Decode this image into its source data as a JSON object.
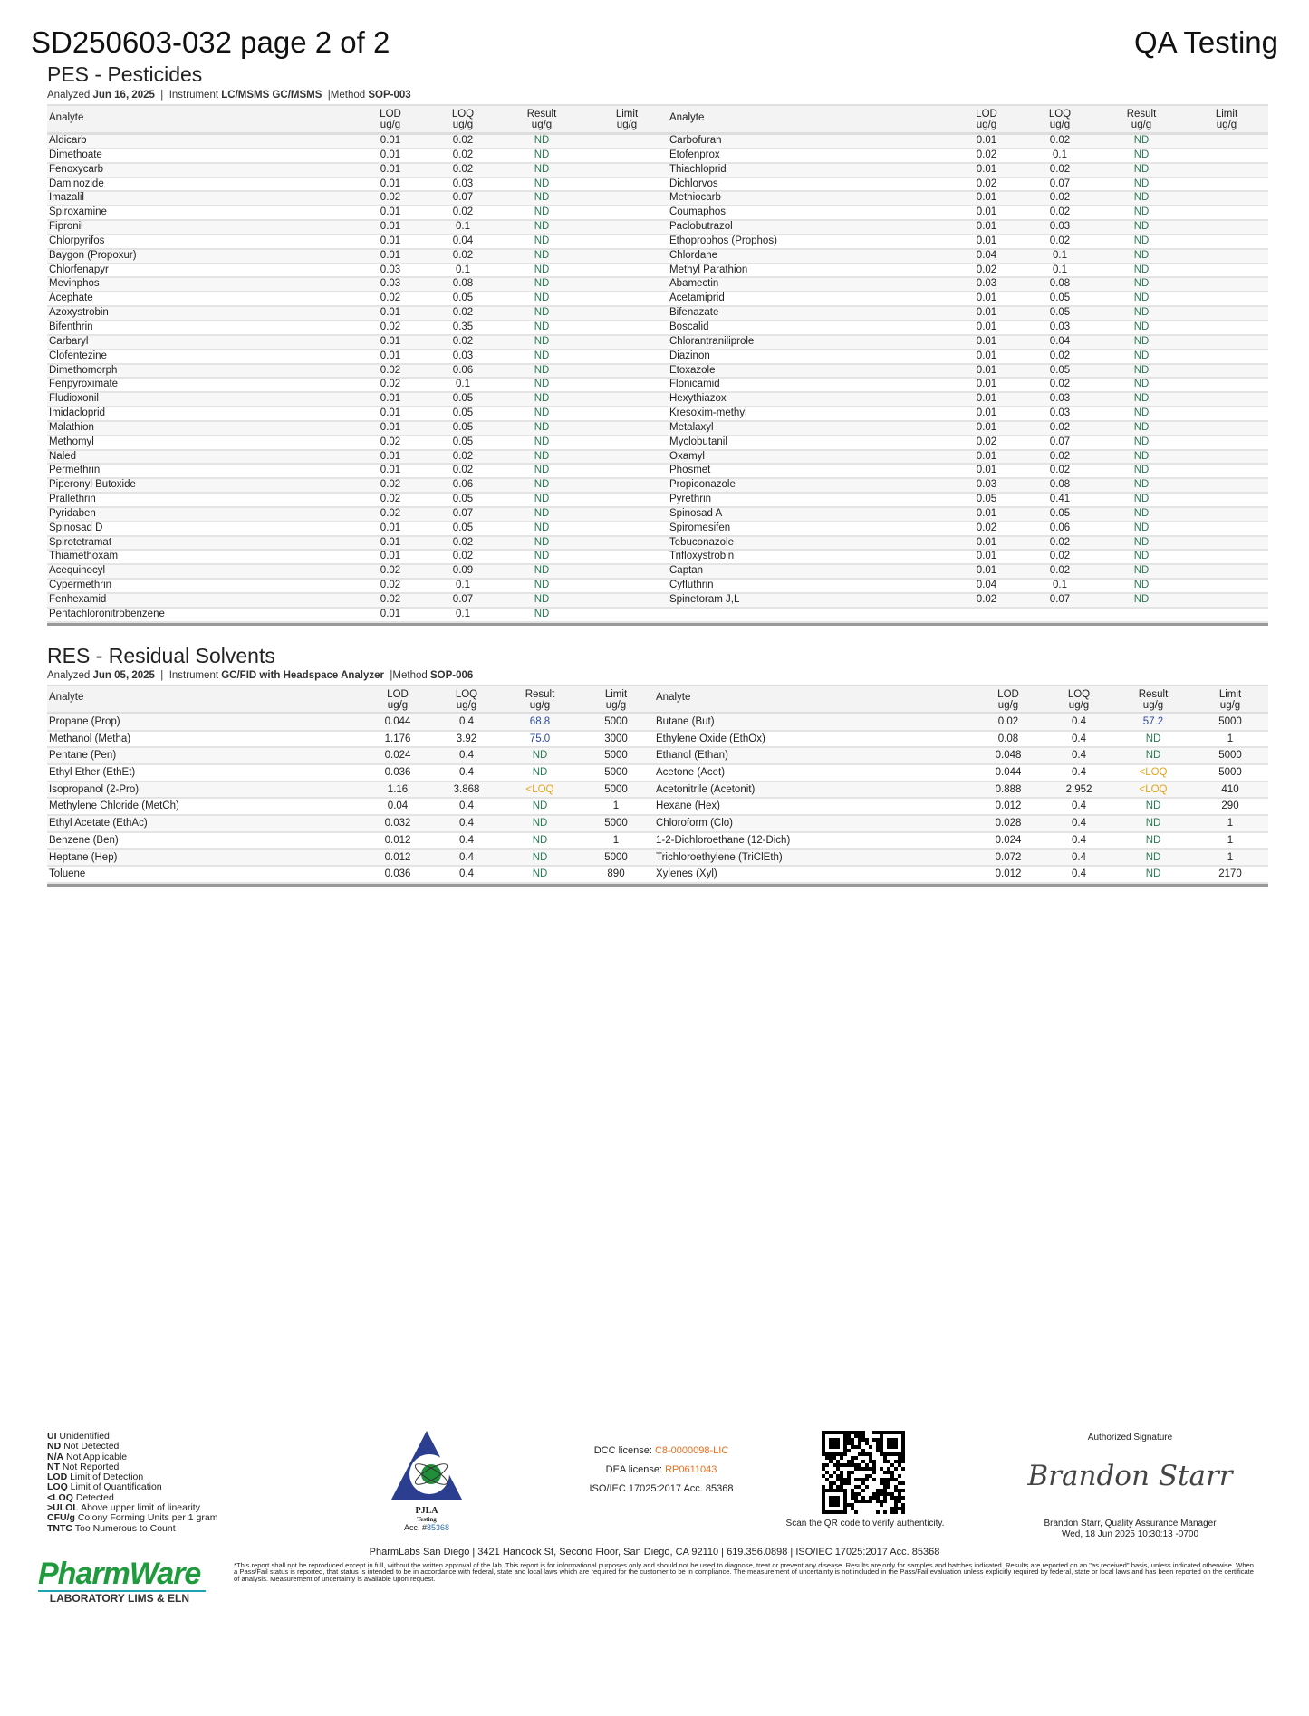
{
  "header": {
    "title": "SD250603-032 page 2 of 2",
    "client": "QA Testing"
  },
  "pes": {
    "heading": "PES - Pesticides",
    "analyzed_label": "Analyzed",
    "analyzed_date": "Jun 16, 2025",
    "instrument_label": "Instrument",
    "instrument": "LC/MSMS GC/MSMS",
    "method_label": "Method",
    "method": "SOP-003",
    "columns": {
      "analyte": "Analyte",
      "lod": [
        "LOD",
        "ug/g"
      ],
      "loq": [
        "LOQ",
        "ug/g"
      ],
      "result": [
        "Result",
        "ug/g"
      ],
      "limit": [
        "Limit",
        "ug/g"
      ]
    },
    "left_rows": [
      [
        "Aldicarb",
        "0.01",
        "0.02",
        "ND",
        ""
      ],
      [
        "Dimethoate",
        "0.01",
        "0.02",
        "ND",
        ""
      ],
      [
        "Fenoxycarb",
        "0.01",
        "0.02",
        "ND",
        ""
      ],
      [
        "Daminozide",
        "0.01",
        "0.03",
        "ND",
        ""
      ],
      [
        "Imazalil",
        "0.02",
        "0.07",
        "ND",
        ""
      ],
      [
        "Spiroxamine",
        "0.01",
        "0.02",
        "ND",
        ""
      ],
      [
        "Fipronil",
        "0.01",
        "0.1",
        "ND",
        ""
      ],
      [
        "Chlorpyrifos",
        "0.01",
        "0.04",
        "ND",
        ""
      ],
      [
        "Baygon (Propoxur)",
        "0.01",
        "0.02",
        "ND",
        ""
      ],
      [
        "Chlorfenapyr",
        "0.03",
        "0.1",
        "ND",
        ""
      ],
      [
        "Mevinphos",
        "0.03",
        "0.08",
        "ND",
        ""
      ],
      [
        "Acephate",
        "0.02",
        "0.05",
        "ND",
        ""
      ],
      [
        "Azoxystrobin",
        "0.01",
        "0.02",
        "ND",
        ""
      ],
      [
        "Bifenthrin",
        "0.02",
        "0.35",
        "ND",
        ""
      ],
      [
        "Carbaryl",
        "0.01",
        "0.02",
        "ND",
        ""
      ],
      [
        "Clofentezine",
        "0.01",
        "0.03",
        "ND",
        ""
      ],
      [
        "Dimethomorph",
        "0.02",
        "0.06",
        "ND",
        ""
      ],
      [
        "Fenpyroximate",
        "0.02",
        "0.1",
        "ND",
        ""
      ],
      [
        "Fludioxonil",
        "0.01",
        "0.05",
        "ND",
        ""
      ],
      [
        "Imidacloprid",
        "0.01",
        "0.05",
        "ND",
        ""
      ],
      [
        "Malathion",
        "0.01",
        "0.05",
        "ND",
        ""
      ],
      [
        "Methomyl",
        "0.02",
        "0.05",
        "ND",
        ""
      ],
      [
        "Naled",
        "0.01",
        "0.02",
        "ND",
        ""
      ],
      [
        "Permethrin",
        "0.01",
        "0.02",
        "ND",
        ""
      ],
      [
        "Piperonyl Butoxide",
        "0.02",
        "0.06",
        "ND",
        ""
      ],
      [
        "Prallethrin",
        "0.02",
        "0.05",
        "ND",
        ""
      ],
      [
        "Pyridaben",
        "0.02",
        "0.07",
        "ND",
        ""
      ],
      [
        "Spinosad D",
        "0.01",
        "0.05",
        "ND",
        ""
      ],
      [
        "Spirotetramat",
        "0.01",
        "0.02",
        "ND",
        ""
      ],
      [
        "Thiamethoxam",
        "0.01",
        "0.02",
        "ND",
        ""
      ],
      [
        "Acequinocyl",
        "0.02",
        "0.09",
        "ND",
        ""
      ],
      [
        "Cypermethrin",
        "0.02",
        "0.1",
        "ND",
        ""
      ],
      [
        "Fenhexamid",
        "0.02",
        "0.07",
        "ND",
        ""
      ],
      [
        "Pentachloronitrobenzene",
        "0.01",
        "0.1",
        "ND",
        ""
      ]
    ],
    "right_rows": [
      [
        "Carbofuran",
        "0.01",
        "0.02",
        "ND",
        ""
      ],
      [
        "Etofenprox",
        "0.02",
        "0.1",
        "ND",
        ""
      ],
      [
        "Thiachloprid",
        "0.01",
        "0.02",
        "ND",
        ""
      ],
      [
        "Dichlorvos",
        "0.02",
        "0.07",
        "ND",
        ""
      ],
      [
        "Methiocarb",
        "0.01",
        "0.02",
        "ND",
        ""
      ],
      [
        "Coumaphos",
        "0.01",
        "0.02",
        "ND",
        ""
      ],
      [
        "Paclobutrazol",
        "0.01",
        "0.03",
        "ND",
        ""
      ],
      [
        "Ethoprophos (Prophos)",
        "0.01",
        "0.02",
        "ND",
        ""
      ],
      [
        "Chlordane",
        "0.04",
        "0.1",
        "ND",
        ""
      ],
      [
        "Methyl Parathion",
        "0.02",
        "0.1",
        "ND",
        ""
      ],
      [
        "Abamectin",
        "0.03",
        "0.08",
        "ND",
        ""
      ],
      [
        "Acetamiprid",
        "0.01",
        "0.05",
        "ND",
        ""
      ],
      [
        "Bifenazate",
        "0.01",
        "0.05",
        "ND",
        ""
      ],
      [
        "Boscalid",
        "0.01",
        "0.03",
        "ND",
        ""
      ],
      [
        "Chlorantraniliprole",
        "0.01",
        "0.04",
        "ND",
        ""
      ],
      [
        "Diazinon",
        "0.01",
        "0.02",
        "ND",
        ""
      ],
      [
        "Etoxazole",
        "0.01",
        "0.05",
        "ND",
        ""
      ],
      [
        "Flonicamid",
        "0.01",
        "0.02",
        "ND",
        ""
      ],
      [
        "Hexythiazox",
        "0.01",
        "0.03",
        "ND",
        ""
      ],
      [
        "Kresoxim-methyl",
        "0.01",
        "0.03",
        "ND",
        ""
      ],
      [
        "Metalaxyl",
        "0.01",
        "0.02",
        "ND",
        ""
      ],
      [
        "Myclobutanil",
        "0.02",
        "0.07",
        "ND",
        ""
      ],
      [
        "Oxamyl",
        "0.01",
        "0.02",
        "ND",
        ""
      ],
      [
        "Phosmet",
        "0.01",
        "0.02",
        "ND",
        ""
      ],
      [
        "Propiconazole",
        "0.03",
        "0.08",
        "ND",
        ""
      ],
      [
        "Pyrethrin",
        "0.05",
        "0.41",
        "ND",
        ""
      ],
      [
        "Spinosad A",
        "0.01",
        "0.05",
        "ND",
        ""
      ],
      [
        "Spiromesifen",
        "0.02",
        "0.06",
        "ND",
        ""
      ],
      [
        "Tebuconazole",
        "0.01",
        "0.02",
        "ND",
        ""
      ],
      [
        "Trifloxystrobin",
        "0.01",
        "0.02",
        "ND",
        ""
      ],
      [
        "Captan",
        "0.01",
        "0.02",
        "ND",
        ""
      ],
      [
        "Cyfluthrin",
        "0.04",
        "0.1",
        "ND",
        ""
      ],
      [
        "Spinetoram J,L",
        "0.02",
        "0.07",
        "ND",
        ""
      ]
    ]
  },
  "res": {
    "heading": "RES - Residual Solvents",
    "analyzed_label": "Analyzed",
    "analyzed_date": "Jun 05, 2025",
    "instrument_label": "Instrument",
    "instrument": "GC/FID with Headspace Analyzer",
    "method_label": "Method",
    "method": "SOP-006",
    "columns": {
      "analyte": "Analyte",
      "lod": [
        "LOD",
        "ug/g"
      ],
      "loq": [
        "LOQ",
        "ug/g"
      ],
      "result": [
        "Result",
        "ug/g"
      ],
      "limit": [
        "Limit",
        "ug/g"
      ]
    },
    "left_rows": [
      [
        "Propane (Prop)",
        "0.044",
        "0.4",
        "68.8",
        "5000"
      ],
      [
        "Methanol (Metha)",
        "1.176",
        "3.92",
        "75.0",
        "3000"
      ],
      [
        "Pentane (Pen)",
        "0.024",
        "0.4",
        "ND",
        "5000"
      ],
      [
        "Ethyl Ether (EthEt)",
        "0.036",
        "0.4",
        "ND",
        "5000"
      ],
      [
        "Isopropanol (2-Pro)",
        "1.16",
        "3.868",
        "<LOQ",
        "5000"
      ],
      [
        "Methylene Chloride (MetCh)",
        "0.04",
        "0.4",
        "ND",
        "1"
      ],
      [
        "Ethyl Acetate (EthAc)",
        "0.032",
        "0.4",
        "ND",
        "5000"
      ],
      [
        "Benzene (Ben)",
        "0.012",
        "0.4",
        "ND",
        "1"
      ],
      [
        "Heptane (Hep)",
        "0.012",
        "0.4",
        "ND",
        "5000"
      ],
      [
        "Toluene",
        "0.036",
        "0.4",
        "ND",
        "890"
      ]
    ],
    "right_rows": [
      [
        "Butane (But)",
        "0.02",
        "0.4",
        "57.2",
        "5000"
      ],
      [
        "Ethylene Oxide (EthOx)",
        "0.08",
        "0.4",
        "ND",
        "1"
      ],
      [
        "Ethanol (Ethan)",
        "0.048",
        "0.4",
        "ND",
        "5000"
      ],
      [
        "Acetone (Acet)",
        "0.044",
        "0.4",
        "<LOQ",
        "5000"
      ],
      [
        "Acetonitrile (Acetonit)",
        "0.888",
        "2.952",
        "<LOQ",
        "410"
      ],
      [
        "Hexane (Hex)",
        "0.012",
        "0.4",
        "ND",
        "290"
      ],
      [
        "Chloroform (Clo)",
        "0.028",
        "0.4",
        "ND",
        "1"
      ],
      [
        "1-2-Dichloroethane (12-Dich)",
        "0.024",
        "0.4",
        "ND",
        "1"
      ],
      [
        "Trichloroethylene (TriClEth)",
        "0.072",
        "0.4",
        "ND",
        "1"
      ],
      [
        "Xylenes (Xyl)",
        "0.012",
        "0.4",
        "ND",
        "2170"
      ]
    ]
  },
  "legend": [
    [
      "UI",
      "Unidentified"
    ],
    [
      "ND",
      "Not Detected"
    ],
    [
      "N/A",
      "Not Applicable"
    ],
    [
      "NT",
      "Not Reported"
    ],
    [
      "LOD",
      "Limit of Detection"
    ],
    [
      "LOQ",
      "Limit of Quantification"
    ],
    [
      "<LOQ",
      "Detected"
    ],
    [
      ">ULOL",
      "Above upper limit of linearity"
    ],
    [
      "CFU/g",
      "Colony Forming Units per 1 gram"
    ],
    [
      "TNTC",
      "Too Numerous to Count"
    ]
  ],
  "pjla": {
    "name": "PJLA",
    "sub": "Testing",
    "acc_label": "Acc. #",
    "acc": "85368"
  },
  "licenses": {
    "dcc_label": "DCC license:",
    "dcc": "C8-0000098-LIC",
    "dea_label": "DEA license:",
    "dea": "RP0611043",
    "iso": "ISO/IEC 17025:2017 Acc. 85368"
  },
  "qr": {
    "caption": "Scan the QR code to verify authenticity."
  },
  "signature": {
    "label": "Authorized Signature",
    "script": "Brandon Starr",
    "name": "Brandon Starr, Quality Assurance Manager",
    "date": "Wed, 18 Jun 2025 10:30:13 -0700"
  },
  "footer": {
    "address": "PharmLabs San Diego | 3421 Hancock St, Second Floor, San Diego, CA 92110 | 619.356.0898 | ISO/IEC 17025:2017 Acc. 85368",
    "disclaimer": "*This report shall not be reproduced except in full, without the written approval of the lab. This report is for informational purposes only and should not be used to diagnose, treat or prevent any disease. Results are only for samples and batches indicated. Results are reported on an \"as received\" basis, unless indicated otherwise. When a Pass/Fail status is reported, that status is intended to be in accordance with federal, state and local laws which are required for the customer to be in compliance. The measurement of uncertainty is not included in the Pass/Fail evaluation unless explicitly required by federal, state or local laws and has been reported on the certificate of analysis. Measurement of uncertainty is available upon request.",
    "logo_text": "PharmWare",
    "logo_sub": "LABORATORY LIMS & ELN"
  },
  "colors": {
    "nd": "#2a7a55",
    "value": "#2b4a9b",
    "loq": "#e8a21a",
    "license": "#e86e1a"
  }
}
